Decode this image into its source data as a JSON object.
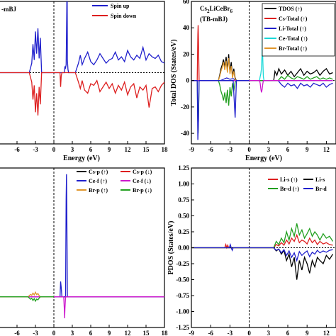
{
  "chart_data": [
    {
      "panel": "top-left",
      "type": "line",
      "annotation": "-mBJ",
      "xlabel": "Energy (eV)",
      "xlim": [
        -9,
        18
      ],
      "ylim": [
        -4.5,
        4.5
      ],
      "xticks": [
        "-6",
        "-3",
        "0",
        "3",
        "6",
        "9",
        "12",
        "15",
        "18"
      ],
      "xtick_values": [
        -6,
        -3,
        0,
        3,
        6,
        9,
        12,
        15,
        18
      ],
      "legend": "top-right",
      "series": [
        {
          "name": "Spin up",
          "color": "#1f1fcc",
          "x": [
            -9,
            -4,
            -3.6,
            -3.4,
            -3.2,
            -3.0,
            -2.8,
            -2.6,
            -2.4,
            -2.2,
            -2.0,
            0,
            1.7,
            1.8,
            1.9,
            2.0,
            2.1,
            2.15,
            2.2,
            2.3,
            2.4,
            3.5,
            4.0,
            4.3,
            4.6,
            5,
            5.5,
            6,
            6.5,
            7,
            7.5,
            8,
            8.5,
            9,
            9.5,
            10,
            10.5,
            11,
            11.5,
            12,
            12.5,
            13,
            13.5,
            14,
            14.5,
            15,
            15.5,
            16,
            16.5,
            17,
            17.5,
            18
          ],
          "y": [
            0,
            0,
            0.6,
            1.8,
            0.8,
            2.6,
            1.2,
            2.8,
            0.9,
            2.2,
            0,
            0,
            0,
            0.4,
            0.3,
            0.5,
            4.0,
            6.8,
            0.8,
            0.2,
            0,
            0,
            0.6,
            1.1,
            0.5,
            0.9,
            1.3,
            0.7,
            0.5,
            0.8,
            1.2,
            0.9,
            0.6,
            0.8,
            0.9,
            1.3,
            0.8,
            1.0,
            0.7,
            1.4,
            1.0,
            0.8,
            1.1,
            0.9,
            1.6,
            0.8,
            1.2,
            1.0,
            0.9,
            1.1,
            0.7,
            0.6
          ]
        },
        {
          "name": "Spin down",
          "color": "#dd1f1f",
          "x": [
            -9,
            -4,
            -3.6,
            -3.4,
            -3.2,
            -3.0,
            -2.8,
            -2.6,
            -2.4,
            -2.2,
            -2.0,
            0,
            1.0,
            1.1,
            1.2,
            1.3,
            2.4,
            3.5,
            4.0,
            4.3,
            4.6,
            5,
            5.5,
            6,
            6.5,
            7,
            7.5,
            8,
            8.5,
            9,
            9.5,
            10,
            10.5,
            11,
            11.5,
            12,
            12.5,
            13,
            13.5,
            14,
            14.5,
            15,
            15.5,
            16,
            16.5,
            17,
            17.5,
            18
          ],
          "y": [
            0,
            0,
            -0.6,
            -1.7,
            -0.8,
            -2.5,
            -1.3,
            -2.7,
            -0.9,
            -2.0,
            0,
            0,
            0,
            -0.9,
            -0.2,
            0,
            0,
            0,
            -0.6,
            -1.0,
            -0.5,
            -1.1,
            -1.3,
            -0.7,
            -0.8,
            -0.5,
            -1.2,
            -0.9,
            -0.6,
            -1.0,
            -0.7,
            -1.3,
            -0.8,
            -1.1,
            -0.6,
            -1.4,
            -0.9,
            -0.7,
            -1.6,
            -0.9,
            -1.1,
            -0.8,
            -2.2,
            -1.0,
            -0.9,
            -1.2,
            -0.8,
            -0.6
          ]
        }
      ]
    },
    {
      "panel": "top-right",
      "type": "line",
      "annotation_lines": [
        "Cs2LiCeBr6",
        "(TB-mBJ)"
      ],
      "xlabel": "Energy (eV)",
      "ylabel": "Total DOS (States/eV)",
      "xlim": [
        -9,
        13.5
      ],
      "ylim": [
        -48,
        60
      ],
      "yticks": [
        "60",
        "40",
        "20",
        "0",
        "-20",
        "-40"
      ],
      "ytick_values": [
        60,
        40,
        20,
        0,
        -20,
        -40
      ],
      "xticks": [
        "-9",
        "-6",
        "-3",
        "0",
        "3",
        "6",
        "9",
        "12"
      ],
      "xtick_values": [
        -9,
        -6,
        -3,
        0,
        3,
        6,
        9,
        12
      ],
      "legend": "top-right",
      "series": [
        {
          "name": "TDOS (↑)",
          "color": "#000000",
          "x": [
            -9,
            -4.8,
            -4.6,
            -4.4,
            -4.2,
            -4.0,
            -3.8,
            -3.6,
            -3.4,
            -3.2,
            -3.0,
            -2.8,
            -2.6,
            -2.4,
            -2.2,
            -2.0,
            0,
            3.8,
            4.0,
            4.3,
            4.6,
            5,
            5.5,
            6,
            6.5,
            7,
            7.5,
            8,
            8.5,
            9,
            9.5,
            10,
            10.5,
            11,
            11.5,
            12,
            12.5,
            13
          ],
          "y": [
            0,
            0,
            4,
            9,
            12,
            16,
            10,
            18,
            8,
            20,
            6,
            14,
            3,
            9,
            2,
            0,
            0,
            0,
            7,
            4,
            9,
            5,
            8,
            4,
            7,
            3,
            6,
            9,
            4,
            7,
            5,
            6,
            8,
            4,
            7,
            9,
            5,
            6
          ]
        },
        {
          "name": "Cs-Total (↑)",
          "color": "#dd1f1f",
          "x": [
            -9,
            -8.1,
            -8.0,
            -7.95,
            -7.9,
            -7.8,
            0
          ],
          "y": [
            0,
            0,
            35,
            42,
            30,
            0,
            0
          ]
        },
        {
          "name": "Li-Total (↑)",
          "color": "#1f1fcc",
          "x": [
            -9,
            -4.5,
            -4.0,
            -3.5,
            -3.0,
            -2.5,
            -2.0,
            0,
            4.5,
            5,
            5.5,
            6,
            6.5,
            7,
            7.5,
            8,
            8.5,
            9,
            9.5,
            10,
            10.5,
            11,
            11.5,
            12,
            12.5,
            13
          ],
          "y": [
            0,
            0,
            1,
            2,
            1,
            1.5,
            0,
            0,
            0,
            -3,
            -5,
            -2,
            -4,
            -3,
            -6,
            -2,
            -4,
            -3,
            -5,
            -2,
            -3,
            -4,
            -2,
            -5,
            -3,
            -2
          ]
        },
        {
          "name": "Ce-Total (↑)",
          "color": "#18d8d8",
          "x": [
            -9,
            1.6,
            1.7,
            1.8,
            1.9,
            2.0,
            2.05,
            2.1,
            2.2,
            2.3,
            13
          ],
          "y": [
            0,
            0,
            3,
            5,
            9,
            20,
            47,
            18,
            3,
            0,
            0
          ]
        },
        {
          "name": "Br-Total (↑)",
          "color": "#e0962a",
          "x": [
            -9,
            -4.8,
            -4.6,
            -4.4,
            -4.2,
            -4.0,
            -3.8,
            -3.6,
            -3.4,
            -3.2,
            -3.0,
            -2.8,
            -2.6,
            -2.4,
            -2.2,
            -2.0,
            0
          ],
          "y": [
            0,
            0,
            3,
            7,
            10,
            14,
            8,
            15,
            6,
            17,
            5,
            11,
            2,
            7,
            1,
            0,
            0
          ]
        },
        {
          "name": "",
          "color": "#22a020",
          "x": [
            -9,
            -8.1,
            -8.0,
            -7.95,
            -7.9,
            -7.8,
            -4.8,
            -4.6,
            -4.4,
            -4.2,
            -4.0,
            -3.8,
            -3.6,
            -3.4,
            -3.2,
            -3.0,
            -2.8,
            -2.6,
            -2.4,
            -2.2,
            -2.0,
            0,
            4.5,
            5,
            5.5,
            6,
            6.5,
            7,
            7.5,
            8,
            8.5,
            9,
            9.5,
            10,
            10.5,
            11,
            11.5,
            12,
            12.5,
            13
          ],
          "y": [
            0,
            0,
            -30,
            -40,
            -28,
            0,
            0,
            -3,
            -8,
            -11,
            -15,
            -9,
            -17,
            -7,
            -19,
            -5,
            -12,
            -2,
            -8,
            -1,
            0,
            0,
            0,
            3,
            1,
            4,
            2,
            1,
            3,
            2,
            1,
            3,
            1,
            2,
            3,
            1,
            2,
            1,
            2,
            1
          ]
        },
        {
          "name": "",
          "color": "#cc18cc",
          "x": [
            -9,
            1.6,
            1.7,
            1.8,
            1.9,
            2.0,
            2.1,
            2.2,
            13
          ],
          "y": [
            0,
            0,
            -2,
            -6,
            -9,
            -7,
            -3,
            0,
            0
          ]
        },
        {
          "name": "",
          "color": "#1f1fcc",
          "x": [
            -9,
            -8.1,
            -8.0,
            -7.9,
            -7.8,
            -2.5,
            -2.2,
            -2.0,
            0
          ],
          "y": [
            0,
            0,
            -45,
            -30,
            0,
            0,
            -28,
            0,
            0
          ]
        }
      ]
    },
    {
      "panel": "bottom-left",
      "type": "line",
      "xlabel": "Energy(eV)",
      "xlim": [
        -9,
        18
      ],
      "ylim": [
        -1.0,
        4.2
      ],
      "xticks": [
        "-6",
        "-3",
        "0",
        "3",
        "6",
        "9",
        "12",
        "15",
        "18"
      ],
      "xtick_values": [
        -6,
        -3,
        0,
        3,
        6,
        9,
        12,
        15,
        18
      ],
      "legend": "top-right",
      "series": [
        {
          "name": "Cs-p (↑)",
          "color": "#000000",
          "x": [
            -9,
            18
          ],
          "y": [
            0,
            0
          ]
        },
        {
          "name": "Cs-p (↓)",
          "color": "#dd1f1f",
          "x": [
            -9,
            18
          ],
          "y": [
            0,
            0
          ]
        },
        {
          "name": "Ce-f (↑)",
          "color": "#1f1fcc",
          "x": [
            -9,
            1.0,
            1.1,
            1.2,
            1.3,
            1.9,
            2.0,
            2.05,
            2.1,
            2.2,
            18
          ],
          "y": [
            0,
            0,
            0.5,
            0.3,
            0,
            0,
            3.2,
            4.0,
            3.0,
            0,
            0
          ]
        },
        {
          "name": "Ce-f (↓)",
          "color": "#cc18cc",
          "x": [
            -9,
            1.6,
            1.7,
            1.75,
            1.8,
            1.9,
            18
          ],
          "y": [
            0,
            0,
            -0.4,
            -0.7,
            -0.4,
            0,
            0
          ]
        },
        {
          "name": "Br-p (↑)",
          "color": "#e0962a",
          "x": [
            -9,
            -4.2,
            -4.0,
            -3.8,
            -3.6,
            -3.4,
            -3.2,
            -3.0,
            -2.8,
            -2.6,
            -2.4,
            -2.2,
            0
          ],
          "y": [
            0,
            0,
            0.04,
            0.08,
            0.05,
            0.12,
            0.06,
            0.15,
            0.07,
            0.11,
            0.04,
            0,
            0
          ]
        },
        {
          "name": "Br-p (↓)",
          "color": "#22a020",
          "x": [
            -9,
            -4.2,
            -4.0,
            -3.8,
            -3.6,
            -3.4,
            -3.2,
            -3.0,
            -2.8,
            -2.6,
            -2.4,
            -2.2,
            0
          ],
          "y": [
            0,
            0,
            -0.04,
            -0.08,
            -0.05,
            -0.12,
            -0.06,
            -0.14,
            -0.07,
            -0.1,
            -0.04,
            0,
            0
          ]
        }
      ]
    },
    {
      "panel": "bottom-right",
      "type": "line",
      "xlabel": "Energy (eV)",
      "ylabel": "PDOS (States/eV)",
      "xlim": [
        -9,
        13.5
      ],
      "ylim": [
        -1.25,
        1.25
      ],
      "yticks": [
        "1.25",
        "1.00",
        "0.75",
        "0.50",
        "0.25",
        "0.00",
        "-0.25",
        "-0.50",
        "-0.75",
        "-1.00",
        "-1.25"
      ],
      "ytick_values": [
        1.25,
        1.0,
        0.75,
        0.5,
        0.25,
        0,
        -0.25,
        -0.5,
        -0.75,
        -1.0,
        -1.25
      ],
      "xticks": [
        "-9",
        "-6",
        "-3",
        "0",
        "3",
        "6",
        "9",
        "12"
      ],
      "xtick_values": [
        -9,
        -6,
        -3,
        0,
        3,
        6,
        9,
        12
      ],
      "legend": "top-right",
      "legend_entries": [
        {
          "name": "Li-s (↑)",
          "color": "#dd1f1f"
        },
        {
          "name": "Li-s",
          "color": "#000000"
        },
        {
          "name": "Br-d (↑)",
          "color": "#22a020"
        },
        {
          "name": "Br-d",
          "color": "#1f1fcc"
        }
      ],
      "series": [
        {
          "name": "",
          "color": "#dd1f1f",
          "x": [
            -9,
            -3.8,
            -3.65,
            -3.5,
            -3.35,
            -3.2,
            3.8,
            4.2,
            4.6,
            5,
            5.4,
            5.8,
            6.2,
            6.6,
            7.0,
            7.4,
            7.8,
            8.2,
            8.6,
            9,
            9.4,
            9.8,
            10.2,
            10.6,
            11,
            11.5,
            12,
            12.5,
            13
          ],
          "y": [
            0,
            0,
            0.05,
            0,
            0.04,
            0,
            0,
            0.05,
            0.03,
            0.08,
            0.04,
            0.12,
            0.06,
            0.15,
            0.1,
            0.2,
            0.08,
            0.12,
            0.1,
            0.06,
            0.15,
            0.08,
            0.12,
            0.05,
            0.1,
            0.06,
            0.08,
            0.05,
            0.04
          ]
        },
        {
          "name": "",
          "color": "#22a020",
          "x": [
            -9,
            3.8,
            4.2,
            4.6,
            5,
            5.4,
            5.8,
            6.2,
            6.6,
            7.0,
            7.4,
            7.8,
            8.2,
            8.6,
            9,
            9.4,
            9.8,
            10.2,
            10.6,
            11,
            11.5,
            12,
            12.5,
            13
          ],
          "y": [
            0,
            0,
            0.1,
            0.05,
            0.15,
            0.08,
            0.25,
            0.12,
            0.3,
            0.18,
            0.38,
            0.2,
            0.28,
            0.15,
            0.22,
            0.3,
            0.18,
            0.25,
            0.2,
            0.12,
            0.22,
            0.15,
            0.18,
            0.1
          ]
        },
        {
          "name": "",
          "color": "#000000",
          "x": [
            -9,
            3.8,
            4.2,
            4.6,
            5,
            5.4,
            5.8,
            6.2,
            6.6,
            7.0,
            7.4,
            7.8,
            8.2,
            8.6,
            9,
            9.4,
            9.8,
            10.2,
            10.6,
            11,
            11.5,
            12,
            12.5,
            13
          ],
          "y": [
            0,
            0,
            -0.05,
            -0.02,
            -0.1,
            -0.04,
            -0.2,
            -0.1,
            -0.3,
            -0.15,
            -0.5,
            -0.2,
            -0.35,
            -0.15,
            -0.25,
            -0.4,
            -0.2,
            -0.3,
            -0.15,
            -0.2,
            -0.25,
            -0.12,
            -0.18,
            -0.1
          ]
        },
        {
          "name": "",
          "color": "#1f1fcc",
          "x": [
            -9,
            -3.1,
            -2.95,
            -2.8,
            -2.65,
            -2.5,
            3.8,
            4.2,
            4.6,
            5,
            5.4,
            5.8,
            6.2,
            6.6,
            7.0,
            7.4,
            7.8,
            8.2,
            8.6,
            9,
            9.4,
            9.8,
            10.2,
            10.6,
            11,
            11.5,
            12,
            12.5,
            13
          ],
          "y": [
            0,
            0,
            0.05,
            0,
            -0.04,
            0,
            0,
            -0.04,
            -0.02,
            -0.08,
            -0.03,
            -0.12,
            -0.05,
            -0.15,
            -0.08,
            -0.2,
            -0.06,
            -0.12,
            -0.08,
            -0.05,
            -0.14,
            -0.07,
            -0.1,
            -0.04,
            -0.08,
            -0.05,
            -0.07,
            -0.04,
            -0.03
          ]
        }
      ]
    }
  ]
}
